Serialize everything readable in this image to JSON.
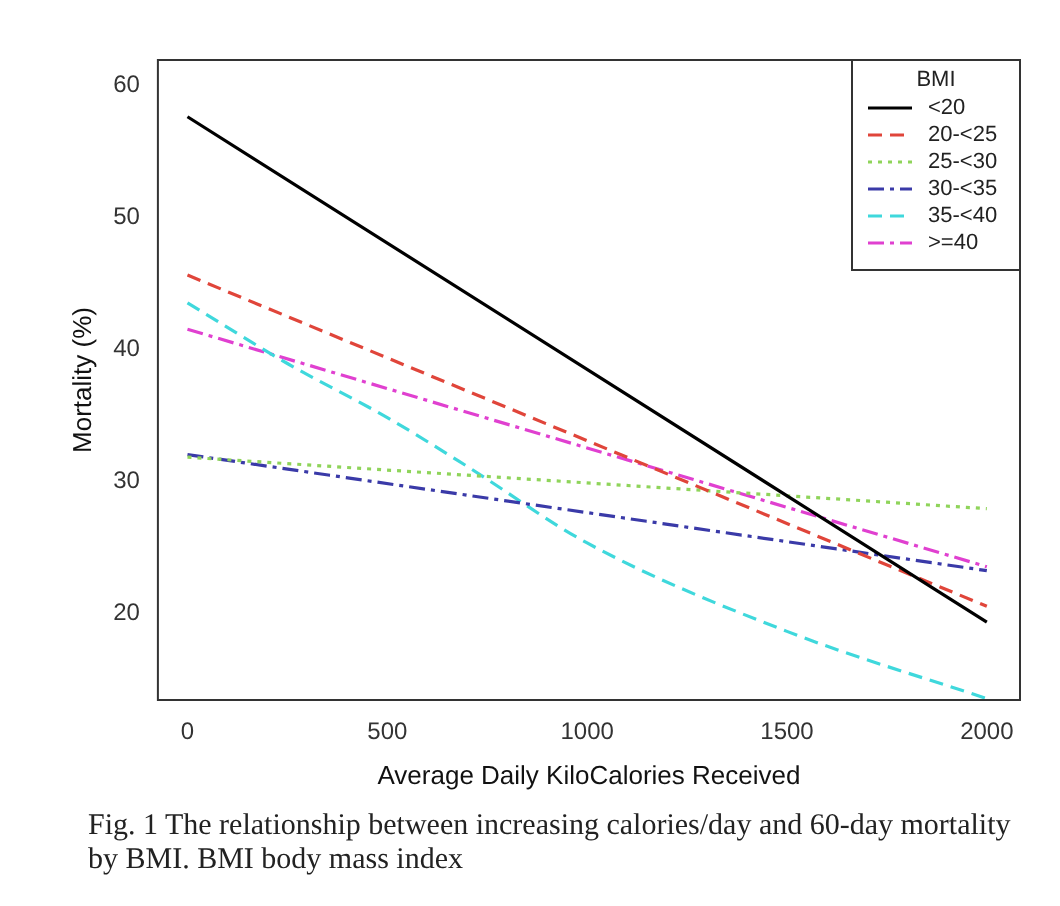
{
  "chart_data": {
    "type": "line",
    "xlabel": "Average Daily KiloCalories Received",
    "ylabel": "Mortality (%)",
    "legend_title": "BMI",
    "legend": "top right",
    "grid": false,
    "marker": "none",
    "xlim": [
      -74,
      2083
    ],
    "ylim": [
      13.4,
      61.9
    ],
    "xticks": [
      0,
      500,
      1000,
      1500,
      2000
    ],
    "yticks": [
      20,
      30,
      40,
      50,
      60
    ],
    "x": [
      0,
      2000
    ],
    "series": [
      {
        "name": "<20",
        "color": "#000000",
        "line_style": "solid",
        "values": [
          57.6,
          19.3
        ]
      },
      {
        "name": "20-<25",
        "color": "#e0453a",
        "line_style": "dashed",
        "values": [
          45.6,
          20.5
        ]
      },
      {
        "name": "25-<30",
        "color": "#8fd45a",
        "line_style": "dotted",
        "values": [
          31.8,
          27.9
        ]
      },
      {
        "name": "30-<35",
        "color": "#3a3aa8",
        "line_style": "dashdot",
        "values": [
          32,
          23.2
        ]
      },
      {
        "name": "35-<40",
        "color": "#3fd8dc",
        "line_style": "dashed",
        "x": [
          0,
          250,
          500,
          700,
          1000,
          1500,
          2000
        ],
        "values": [
          43.5,
          38.9,
          34.8,
          31.1,
          25.3,
          18.6,
          13.5
        ]
      },
      {
        "name": ">=40",
        "color": "#e040d0",
        "line_style": "dashdot",
        "values": [
          41.5,
          23.5
        ]
      }
    ],
    "annotations": [
      "Fig. 1  The relationship between increasing calories/day and 60-day mortality by BMI. BMI body mass index"
    ]
  }
}
